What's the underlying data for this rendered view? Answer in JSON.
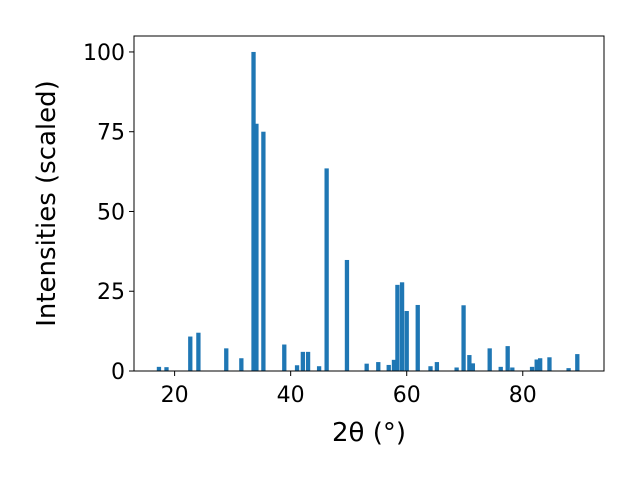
{
  "chart_data": {
    "type": "bar",
    "xlabel": "2θ (°)",
    "ylabel": "Intensities (scaled)",
    "xlim": [
      13,
      94
    ],
    "ylim": [
      0,
      105
    ],
    "x_ticks": [
      20,
      40,
      60,
      80
    ],
    "y_ticks": [
      0,
      25,
      50,
      75,
      100
    ],
    "bar_color": "#1f77b4",
    "grid": false,
    "bars": [
      {
        "x": 17.3,
        "y": 1.3
      },
      {
        "x": 18.6,
        "y": 1.2
      },
      {
        "x": 22.7,
        "y": 10.8
      },
      {
        "x": 24.1,
        "y": 12.0
      },
      {
        "x": 28.9,
        "y": 7.1
      },
      {
        "x": 31.5,
        "y": 4.0
      },
      {
        "x": 33.6,
        "y": 100
      },
      {
        "x": 34.1,
        "y": 77.5
      },
      {
        "x": 35.3,
        "y": 75
      },
      {
        "x": 38.9,
        "y": 8.3
      },
      {
        "x": 41.1,
        "y": 1.8
      },
      {
        "x": 42.1,
        "y": 6.0
      },
      {
        "x": 43.0,
        "y": 6.0
      },
      {
        "x": 44.9,
        "y": 1.5
      },
      {
        "x": 46.2,
        "y": 63.5
      },
      {
        "x": 49.7,
        "y": 34.8
      },
      {
        "x": 53.1,
        "y": 2.3
      },
      {
        "x": 55.1,
        "y": 2.8
      },
      {
        "x": 56.9,
        "y": 1.9
      },
      {
        "x": 57.8,
        "y": 3.5
      },
      {
        "x": 58.4,
        "y": 27.0
      },
      {
        "x": 59.2,
        "y": 27.8
      },
      {
        "x": 60.0,
        "y": 18.8
      },
      {
        "x": 61.9,
        "y": 20.7
      },
      {
        "x": 64.1,
        "y": 1.5
      },
      {
        "x": 65.2,
        "y": 2.8
      },
      {
        "x": 68.6,
        "y": 1.1
      },
      {
        "x": 69.8,
        "y": 20.6
      },
      {
        "x": 70.8,
        "y": 5.0
      },
      {
        "x": 71.4,
        "y": 2.4
      },
      {
        "x": 74.3,
        "y": 7.1
      },
      {
        "x": 76.2,
        "y": 1.3
      },
      {
        "x": 77.4,
        "y": 7.8
      },
      {
        "x": 78.2,
        "y": 1.1
      },
      {
        "x": 81.6,
        "y": 1.3
      },
      {
        "x": 82.4,
        "y": 3.6
      },
      {
        "x": 83.0,
        "y": 4.0
      },
      {
        "x": 84.6,
        "y": 4.3
      },
      {
        "x": 87.9,
        "y": 0.9
      },
      {
        "x": 89.4,
        "y": 5.3
      }
    ]
  }
}
